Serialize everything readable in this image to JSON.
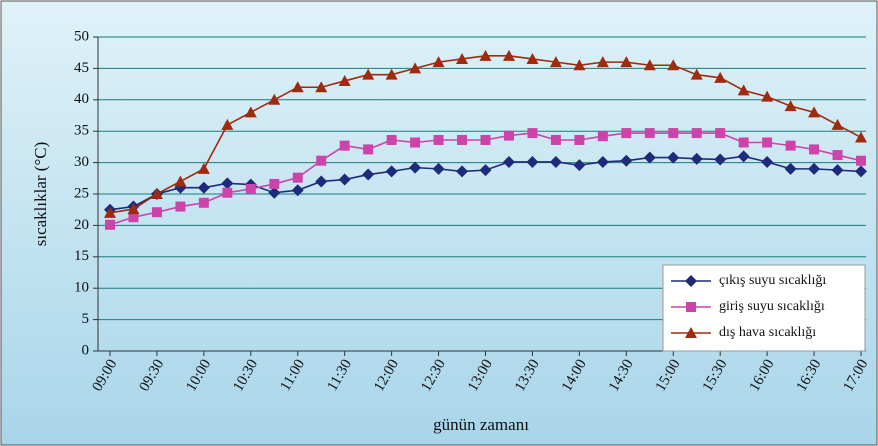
{
  "chart_data": {
    "type": "line",
    "y_label": "sıcaklıklar (°C)",
    "x_label": "günün zamanı",
    "categories": [
      "09:00",
      null,
      "09:30",
      null,
      "10:00",
      null,
      "10:30",
      null,
      "11:00",
      null,
      "11:30",
      null,
      "12:00",
      null,
      "12:30",
      null,
      "13:00",
      null,
      "13:30",
      null,
      "14:00",
      null,
      "14:30",
      null,
      "15:00",
      null,
      "15:30",
      null,
      "16:00",
      null,
      "16:30",
      null,
      "17:00"
    ],
    "series": [
      {
        "name": "çıkış suyu sıcaklığı",
        "color": "#1f2a7a",
        "marker": "diamond",
        "values": [
          22.5,
          23,
          25,
          26,
          26,
          26.7,
          26.5,
          25.2,
          25.6,
          27,
          27.3,
          28.1,
          28.6,
          29.2,
          29,
          28.6,
          28.8,
          30.1,
          30.1,
          30.1,
          29.6,
          30.1,
          30.3,
          30.8,
          30.8,
          30.6,
          30.5,
          31,
          30.1,
          29,
          29,
          28.8,
          28.6
        ]
      },
      {
        "name": "giriş suyu sıcaklığı",
        "color": "#cc44aa",
        "marker": "square",
        "values": [
          20.1,
          21.3,
          22.1,
          23,
          23.6,
          25.2,
          25.8,
          26.6,
          27.6,
          30.3,
          32.7,
          32.1,
          33.6,
          33.2,
          33.6,
          33.6,
          33.6,
          34.3,
          34.7,
          33.6,
          33.6,
          34.2,
          34.7,
          34.7,
          34.7,
          34.7,
          34.7,
          33.2,
          33.2,
          32.7,
          32.1,
          31.2,
          30.3
        ]
      },
      {
        "name": "dış hava sıcaklığı",
        "color": "#a02a10",
        "marker": "triangle",
        "values": [
          22,
          22.6,
          25,
          27,
          29,
          36,
          38,
          40,
          42,
          42,
          43,
          44,
          44,
          45,
          46,
          46.5,
          47,
          47,
          46.5,
          46,
          45.5,
          46,
          46,
          45.5,
          45.5,
          44,
          43.5,
          41.5,
          40.5,
          39,
          38,
          36,
          34
        ]
      }
    ],
    "ylim": [
      0,
      50
    ],
    "yticks": [
      0,
      5,
      10,
      15,
      20,
      25,
      30,
      35,
      40,
      45,
      50
    ],
    "grid": true,
    "legend": "lower right"
  }
}
